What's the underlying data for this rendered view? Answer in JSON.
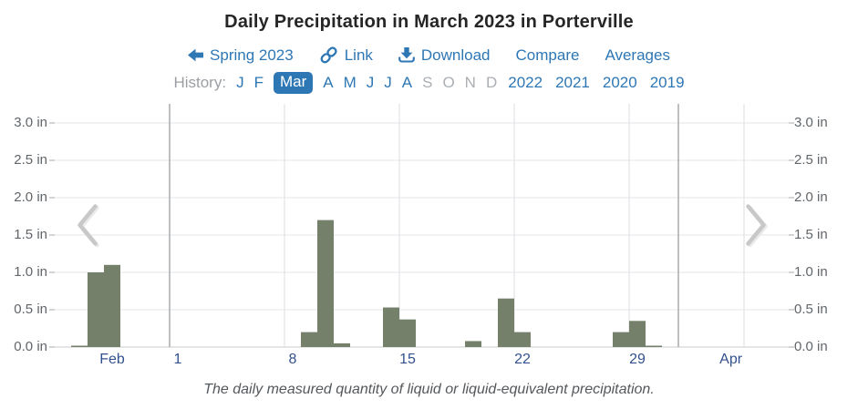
{
  "page": {
    "title": "Daily Precipitation in March 2023 in Porterville",
    "caption": "The daily measured quantity of liquid or liquid-equivalent precipitation."
  },
  "nav": {
    "prev_season": "Spring 2023",
    "link": "Link",
    "download": "Download",
    "compare": "Compare",
    "averages": "Averages"
  },
  "history": {
    "label": "History:",
    "months": [
      {
        "label": "J",
        "state": "link"
      },
      {
        "label": "F",
        "state": "link"
      },
      {
        "label": "Mar",
        "state": "selected"
      },
      {
        "label": "A",
        "state": "link"
      },
      {
        "label": "M",
        "state": "link"
      },
      {
        "label": "J",
        "state": "link"
      },
      {
        "label": "J",
        "state": "link"
      },
      {
        "label": "A",
        "state": "link"
      },
      {
        "label": "S",
        "state": "muted"
      },
      {
        "label": "O",
        "state": "muted"
      },
      {
        "label": "N",
        "state": "muted"
      },
      {
        "label": "D",
        "state": "muted"
      }
    ],
    "years": [
      "2022",
      "2021",
      "2020",
      "2019"
    ]
  },
  "colors": {
    "link_blue": "#2e77b5",
    "bar_green": "#75806b",
    "x_label_navy": "#33518e",
    "y_label_gray": "#61666b",
    "grid_light": "#e3e5e7",
    "grid_month": "#a7aaac",
    "chevron_gray": "#c8c8c8"
  },
  "chart_data": {
    "type": "bar",
    "title": "Daily Precipitation in March 2023 in Porterville",
    "unit": "in",
    "ylim": [
      0,
      3.0
    ],
    "ytick_step": 0.5,
    "ytick_labels": [
      "0.0 in",
      "0.5 in",
      "1.0 in",
      "1.5 in",
      "2.0 in",
      "2.5 in",
      "3.0 in"
    ],
    "grid": true,
    "dual_y_axis": true,
    "x_window": {
      "start": "Feb 22",
      "end": "Apr 7",
      "days_visible": 44.7
    },
    "month_start_days": [
      7,
      38
    ],
    "week_gridline_days": [
      14,
      21,
      28,
      35,
      42
    ],
    "xtick_labels": [
      {
        "label": "Feb",
        "day": 3.5
      },
      {
        "label": "1",
        "day": 7.5
      },
      {
        "label": "8",
        "day": 14.5
      },
      {
        "label": "15",
        "day": 21.5
      },
      {
        "label": "22",
        "day": 28.5
      },
      {
        "label": "29",
        "day": 35.5
      },
      {
        "label": "Apr",
        "day": 41.2
      }
    ],
    "bars": [
      {
        "date": "Feb 23",
        "day": 1,
        "value": 0.01
      },
      {
        "date": "Feb 24",
        "day": 2,
        "value": 1.0
      },
      {
        "date": "Feb 25",
        "day": 3,
        "value": 1.1
      },
      {
        "date": "Mar 9",
        "day": 15,
        "value": 0.2
      },
      {
        "date": "Mar 10",
        "day": 16,
        "value": 1.7
      },
      {
        "date": "Mar 11",
        "day": 17,
        "value": 0.05
      },
      {
        "date": "Mar 14",
        "day": 20,
        "value": 0.53
      },
      {
        "date": "Mar 15",
        "day": 21,
        "value": 0.37
      },
      {
        "date": "Mar 19",
        "day": 25,
        "value": 0.08
      },
      {
        "date": "Mar 21",
        "day": 27,
        "value": 0.65
      },
      {
        "date": "Mar 22",
        "day": 28,
        "value": 0.2
      },
      {
        "date": "Mar 28",
        "day": 34,
        "value": 0.2
      },
      {
        "date": "Mar 29",
        "day": 35,
        "value": 0.35
      },
      {
        "date": "Mar 30",
        "day": 36,
        "value": 0.01
      }
    ],
    "bar_color": "#75806b"
  }
}
